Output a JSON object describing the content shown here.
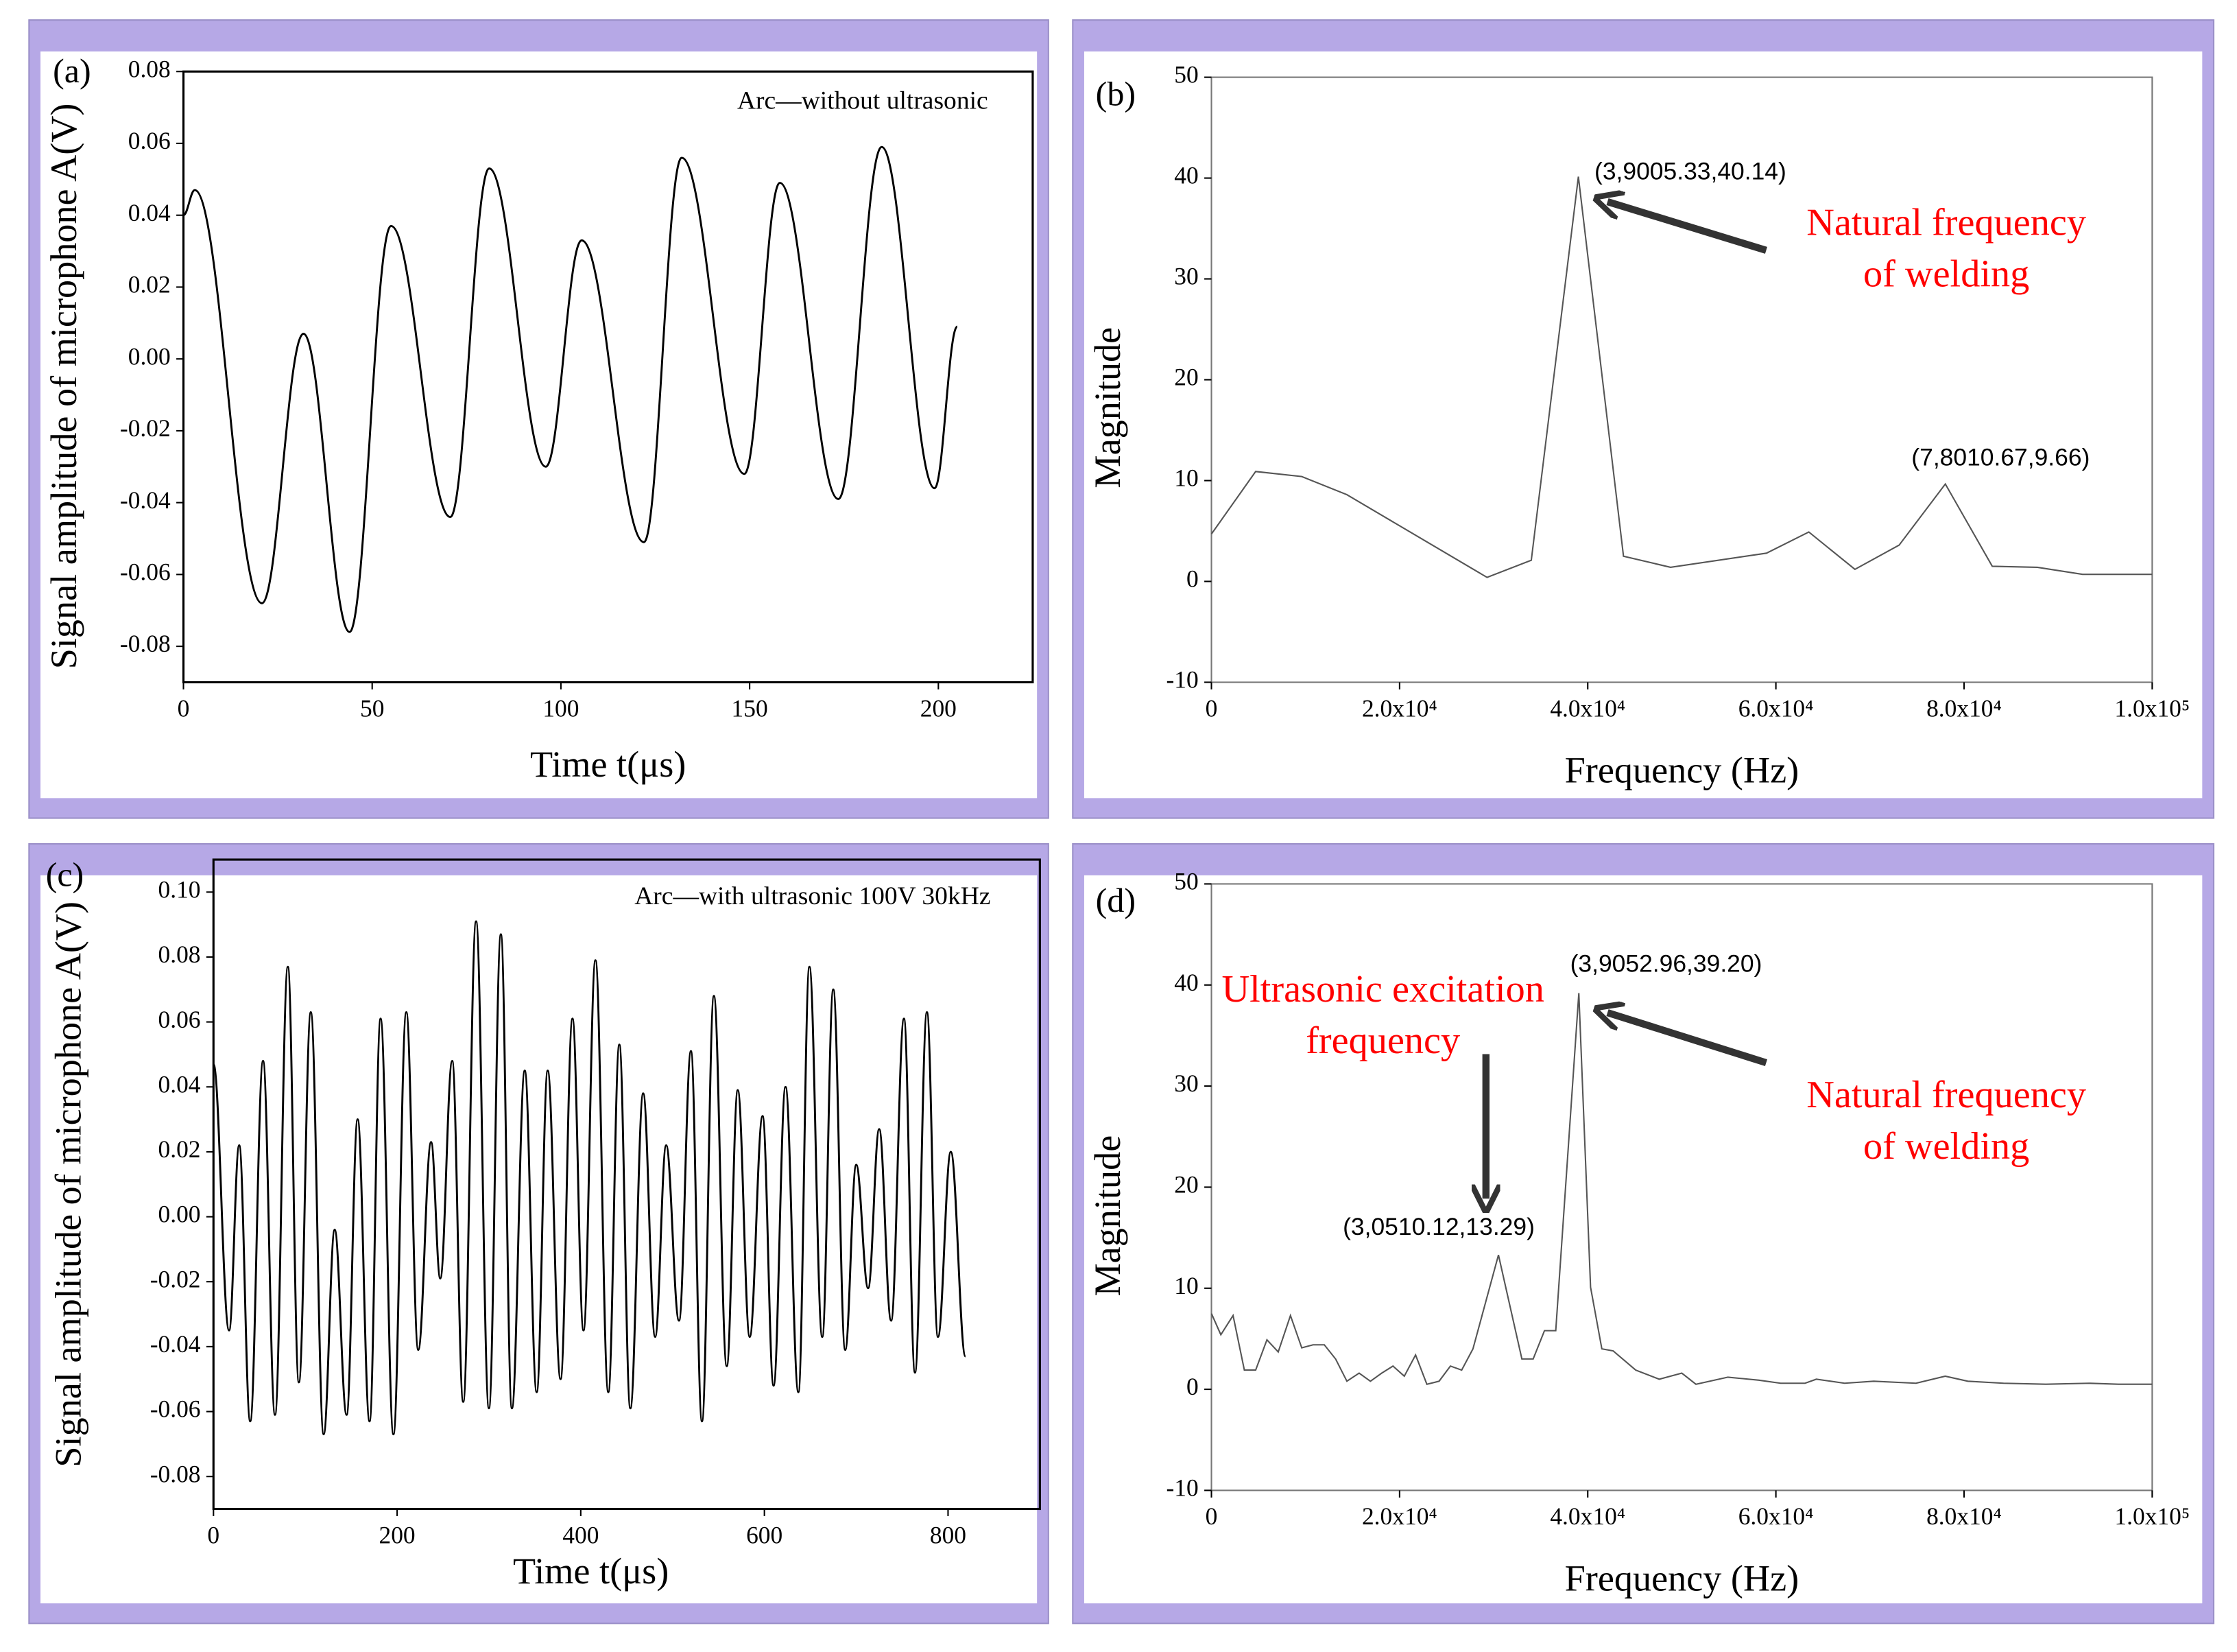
{
  "chart_data": [
    {
      "type": "line",
      "panel": "(a)",
      "xlabel": "Time t(μs)",
      "ylabel": "Signal amplitude of microphone A(V)",
      "annotations": [
        {
          "text": "Arc—without ultrasonic",
          "color": "#000000"
        }
      ],
      "xlim": [
        0,
        225
      ],
      "xticks": [
        0,
        50,
        100,
        150,
        200
      ],
      "ylim": [
        -0.09,
        0.08
      ],
      "yticks": [
        0.08,
        0.06,
        0.04,
        0.02,
        {
          "value": 0,
          "label": "0.00"
        },
        -0.02,
        -0.04,
        -0.06,
        -0.08
      ],
      "series": [
        {
          "color": "#000000",
          "x": [
            0,
            3,
            20.8,
            31.8,
            44,
            55,
            70.7,
            81,
            96,
            105.5,
            122,
            132,
            148.6,
            158,
            173.5,
            185,
            199,
            205
          ],
          "values": [
            0.04,
            0.047,
            -0.068,
            0.007,
            -0.076,
            0.037,
            -0.044,
            0.053,
            -0.03,
            0.033,
            -0.051,
            0.056,
            -0.032,
            0.049,
            -0.039,
            0.059,
            -0.036,
            0.009
          ]
        }
      ]
    },
    {
      "type": "line",
      "panel": "(b)",
      "xlabel": "Frequency (Hz)",
      "ylabel": "Magnitude",
      "annotations": [
        {
          "text": "(3,9005.33,40.14)",
          "color": "#000000"
        },
        {
          "text": "(7,8010.67,9.66)",
          "color": "#000000"
        },
        {
          "text": "Natural frequency",
          "color": "#ff0000"
        },
        {
          "text": "of welding",
          "color": "#ff0000"
        }
      ],
      "xlim": [
        0,
        100000
      ],
      "xticks": [
        0,
        {
          "value": 20000,
          "label": "2.0x10⁴"
        },
        {
          "value": 40000,
          "label": "4.0x10⁴"
        },
        {
          "value": 60000,
          "label": "6.0x10⁴"
        },
        {
          "value": 80000,
          "label": "8.0x10⁴"
        },
        {
          "value": 100000,
          "label": "1.0x10⁵"
        }
      ],
      "ylim": [
        -10,
        50
      ],
      "yticks": [
        50,
        40,
        30,
        20,
        10,
        0,
        -10
      ],
      "series": [
        {
          "color": "#555555",
          "x": [
            0,
            4700,
            9600,
            14400,
            29300,
            34000,
            39005.33,
            43800,
            48800,
            59000,
            63500,
            68400,
            73100,
            78010.67,
            83000,
            87800,
            92600,
            100000
          ],
          "values": [
            4.7,
            10.9,
            10.4,
            8.6,
            0.4,
            2.1,
            40.14,
            2.5,
            1.4,
            2.8,
            4.9,
            1.2,
            3.6,
            9.66,
            1.5,
            1.4,
            0.7,
            0.7
          ]
        }
      ]
    },
    {
      "type": "line",
      "panel": "(c)",
      "xlabel": "Time t(μs)",
      "ylabel": "Signal amplitude of microphone A(V)",
      "annotations": [
        {
          "text": "Arc—with ultrasonic  100V 30kHz",
          "color": "#000000"
        }
      ],
      "xlim": [
        0,
        900
      ],
      "xticks": [
        0,
        200,
        400,
        600,
        800
      ],
      "ylim": [
        -0.09,
        0.11
      ],
      "yticks": [
        {
          "value": 0.1,
          "label": "0.10"
        },
        0.08,
        0.06,
        0.04,
        0.02,
        {
          "value": 0,
          "label": "0.00"
        },
        -0.02,
        -0.04,
        -0.06,
        -0.08
      ],
      "series": [
        {
          "color": "#000000",
          "x": [
            0,
            17,
            28,
            40,
            54,
            67,
            81,
            93,
            106,
            120,
            132,
            145,
            157,
            170,
            182,
            196,
            210,
            223,
            237,
            247,
            260,
            272,
            286,
            300,
            313,
            325,
            339,
            352,
            364,
            378,
            391,
            403,
            416,
            430,
            442,
            454,
            468,
            481,
            493,
            507,
            520,
            532,
            545,
            559,
            571,
            584,
            598,
            610,
            623,
            637,
            649,
            663,
            675,
            688,
            700,
            713,
            725,
            738,
            752,
            764,
            777,
            789,
            803,
            819
          ],
          "values": [
            0.047,
            -0.035,
            0.022,
            -0.063,
            0.048,
            -0.061,
            0.077,
            -0.051,
            0.063,
            -0.067,
            -0.004,
            -0.061,
            0.03,
            -0.063,
            0.061,
            -0.067,
            0.063,
            -0.041,
            0.023,
            -0.019,
            0.048,
            -0.057,
            0.091,
            -0.059,
            0.087,
            -0.059,
            0.045,
            -0.054,
            0.045,
            -0.05,
            0.061,
            -0.035,
            0.079,
            -0.054,
            0.053,
            -0.059,
            0.038,
            -0.037,
            0.022,
            -0.032,
            0.051,
            -0.063,
            0.068,
            -0.046,
            0.039,
            -0.037,
            0.031,
            -0.052,
            0.04,
            -0.054,
            0.077,
            -0.037,
            0.07,
            -0.041,
            0.016,
            -0.022,
            0.027,
            -0.032,
            0.061,
            -0.048,
            0.063,
            -0.037,
            0.02,
            -0.043
          ]
        }
      ]
    },
    {
      "type": "line",
      "panel": "(d)",
      "xlabel": "Frequency (Hz)",
      "ylabel": "Magnitude",
      "annotations": [
        {
          "text": "(3,9052.96,39.20)",
          "color": "#000000"
        },
        {
          "text": "(3,0510.12,13.29)",
          "color": "#000000"
        },
        {
          "text": "Ultrasonic excitation",
          "color": "#ff0000"
        },
        {
          "text": "frequency",
          "color": "#ff0000"
        },
        {
          "text": "Natural frequency",
          "color": "#ff0000"
        },
        {
          "text": "of welding",
          "color": "#ff0000"
        }
      ],
      "xlim": [
        0,
        100000
      ],
      "xticks": [
        0,
        {
          "value": 20000,
          "label": "2.0x10⁴"
        },
        {
          "value": 40000,
          "label": "4.0x10⁴"
        },
        {
          "value": 60000,
          "label": "6.0x10⁴"
        },
        {
          "value": 80000,
          "label": "8.0x10⁴"
        },
        {
          "value": 100000,
          "label": "1.0x10⁵"
        }
      ],
      "ylim": [
        -10,
        50
      ],
      "yticks": [
        50,
        40,
        30,
        20,
        10,
        0,
        -10
      ],
      "series": [
        {
          "color": "#555555",
          "x": [
            0,
            1000,
            2300,
            3500,
            4700,
            5900,
            7100,
            8400,
            9600,
            10800,
            12000,
            13200,
            14400,
            15700,
            16900,
            18100,
            19300,
            20500,
            21700,
            22900,
            24200,
            25400,
            26600,
            27800,
            30510.12,
            33000,
            34200,
            35400,
            36600,
            39052.96,
            40300,
            41500,
            42700,
            45100,
            47600,
            50000,
            51500,
            54900,
            58200,
            60500,
            63100,
            64300,
            67300,
            70400,
            74900,
            78000,
            80400,
            84200,
            88700,
            93300,
            96400,
            100000
          ],
          "values": [
            7.5,
            5.4,
            7.3,
            1.9,
            1.9,
            4.9,
            3.7,
            7.3,
            4.1,
            4.4,
            4.4,
            3.0,
            0.8,
            1.6,
            0.8,
            1.6,
            2.3,
            1.3,
            3.4,
            0.5,
            0.8,
            2.3,
            1.9,
            4.0,
            13.29,
            3.0,
            3.0,
            5.8,
            5.8,
            39.2,
            10.1,
            4.0,
            3.8,
            1.9,
            1.0,
            1.6,
            0.5,
            1.2,
            0.9,
            0.6,
            0.6,
            1.0,
            0.6,
            0.8,
            0.6,
            1.3,
            0.8,
            0.6,
            0.5,
            0.6,
            0.5,
            0.5
          ]
        }
      ]
    }
  ]
}
